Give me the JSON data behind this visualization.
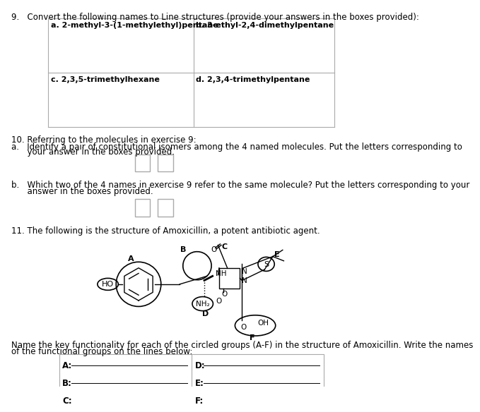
{
  "bg_color": "#ffffff",
  "q9_title": "9.   Convert the following names to Line structures (provide your answers in the boxes provided):",
  "q9_cells": [
    "a. 2-methyl-3-(1-methylethyl)pentane",
    "b. 3-ethyl-2,4-dimethylpentane",
    "c. 2,3,5-trimethylhexane",
    "d. 2,3,4-trimethylpentane"
  ],
  "q10_title": "10. Referring to the molecules in exercise 9:",
  "q10a_line1": "a.   Identify a pair of constitutional isomers among the 4 named molecules. Put the letters corresponding to",
  "q10a_line2": "      your answer in the boxes provided.",
  "q10b_line1": "b.   Which two of the 4 names in exercise 9 refer to the same molecule? Put the letters corresponding to your",
  "q10b_line2": "      answer in the boxes provided.",
  "q11_title": "11. The following is the structure of Amoxicillin, a potent antibiotic agent.",
  "q11_name1": "Name the key functionality for each of the circled groups (A-F) in the structure of Amoxicillin. Write the names",
  "q11_name2": "of the functional groups on the lines below:",
  "answer_labels_left": [
    "A:",
    "B:",
    "C:"
  ],
  "answer_labels_right": [
    "D:",
    "E:",
    "F:"
  ],
  "font_size": 8.5,
  "text_color": "#000000",
  "grid_color": "#aaaaaa"
}
